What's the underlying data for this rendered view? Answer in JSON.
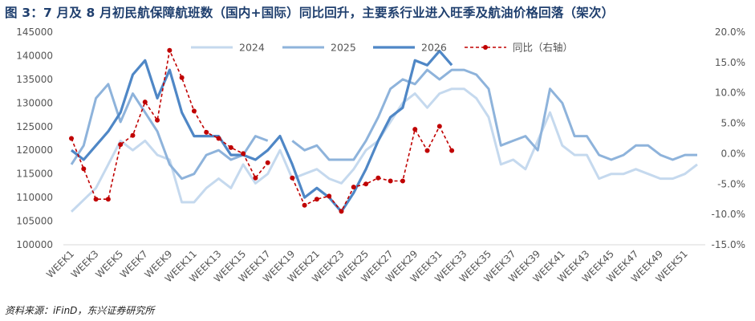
{
  "title": "图 3：7 月及 8 月初民航保障航班数（国内+国际）同比回升，主要系行业进入旺季及航油价格回落（架次）",
  "source": "资料来源：iFinD，东兴证券研究所",
  "colors": {
    "s2024": "#c5d9ee",
    "s2025": "#8eb3db",
    "s2026": "#4f87c6",
    "yoy": "#c00000",
    "axis": "#d9d9d9",
    "text": "#555555"
  },
  "chart_data": {
    "type": "line",
    "left_axis": {
      "min": 100000,
      "max": 145000,
      "step": 5000,
      "ticks": [
        "100000",
        "105000",
        "110000",
        "115000",
        "120000",
        "125000",
        "130000",
        "135000",
        "140000",
        "145000"
      ]
    },
    "right_axis": {
      "min": -15,
      "max": 20,
      "step": 5,
      "ticks": [
        "-15.0%",
        "-10.0%",
        "-5.0%",
        "0.0%",
        "5.0%",
        "10.0%",
        "15.0%",
        "20.0%"
      ]
    },
    "x_tick_labels": [
      "WEEK1",
      "WEEK3",
      "WEEK5",
      "WEEK7",
      "WEEK9",
      "WEEK11",
      "WEEK13",
      "WEEK15",
      "WEEK17",
      "WEEK19",
      "WEEK21",
      "WEEK23",
      "WEEK25",
      "WEEK27",
      "WEEK29",
      "WEEK31",
      "WEEK33",
      "WEEK35",
      "WEEK37",
      "WEEK39",
      "WEEK41",
      "WEEK43",
      "WEEK45",
      "WEEK47",
      "WEEK49",
      "WEEK51"
    ],
    "x_count": 52,
    "legend": [
      "2024",
      "2025",
      "2026",
      "同比（右轴）"
    ],
    "series": [
      {
        "name": "2024",
        "axis": "left",
        "values": [
          107000,
          109500,
          112000,
          117000,
          122000,
          120000,
          122000,
          119000,
          118000,
          109000,
          109000,
          112000,
          114000,
          112000,
          117000,
          113000,
          115000,
          120000,
          114000,
          115000,
          116000,
          114000,
          113000,
          116000,
          120000,
          122000,
          126000,
          130000,
          132000,
          129000,
          132000,
          133000,
          133000,
          131000,
          127000,
          117000,
          118000,
          116000,
          122000,
          128000,
          121000,
          119000,
          119000,
          114000,
          115000,
          115000,
          116000,
          115000,
          114000,
          114000,
          115000,
          117000
        ]
      },
      {
        "name": "2025",
        "axis": "left",
        "values": [
          117000,
          121000,
          131000,
          134000,
          126000,
          132000,
          128000,
          124000,
          117000,
          114000,
          115000,
          119000,
          120000,
          118000,
          119000,
          123000,
          122000,
          null,
          122000,
          120000,
          121000,
          118000,
          118000,
          118000,
          122000,
          127000,
          133000,
          135000,
          134000,
          137000,
          135000,
          137000,
          137000,
          136000,
          133000,
          121000,
          122000,
          123000,
          120000,
          133000,
          130000,
          123000,
          123000,
          119000,
          118000,
          119000,
          121000,
          121000,
          119000,
          118000,
          119000,
          119000
        ]
      },
      {
        "name": "2026",
        "axis": "left",
        "values": [
          120000,
          118000,
          121000,
          124000,
          128000,
          136000,
          139000,
          131000,
          137000,
          128000,
          123000,
          123000,
          123000,
          119000,
          119000,
          118000,
          120000,
          123000,
          117000,
          110000,
          112000,
          110000,
          107000,
          111000,
          116000,
          122000,
          127000,
          129000,
          139000,
          138000,
          141000,
          138000,
          null,
          null,
          null,
          null,
          null,
          null,
          null,
          null,
          null,
          null,
          null,
          null,
          null,
          null,
          null,
          null,
          null,
          null,
          null,
          null
        ]
      },
      {
        "name": "同比（右轴）",
        "axis": "right",
        "values": [
          2.5,
          -2.5,
          -7.5,
          -7.5,
          1.5,
          3.0,
          8.5,
          5.5,
          17.0,
          12.5,
          7.0,
          3.5,
          2.5,
          1.0,
          0.0,
          -4.0,
          -1.5,
          null,
          -4.0,
          -8.5,
          -7.5,
          -7.0,
          -9.5,
          -5.5,
          -5.0,
          -4.0,
          -4.5,
          -4.5,
          4.0,
          0.5,
          4.5,
          0.5,
          null,
          null,
          null,
          null,
          null,
          null,
          null,
          null,
          null,
          null,
          null,
          null,
          null,
          null,
          null,
          null,
          null,
          null,
          null,
          null
        ]
      }
    ]
  }
}
